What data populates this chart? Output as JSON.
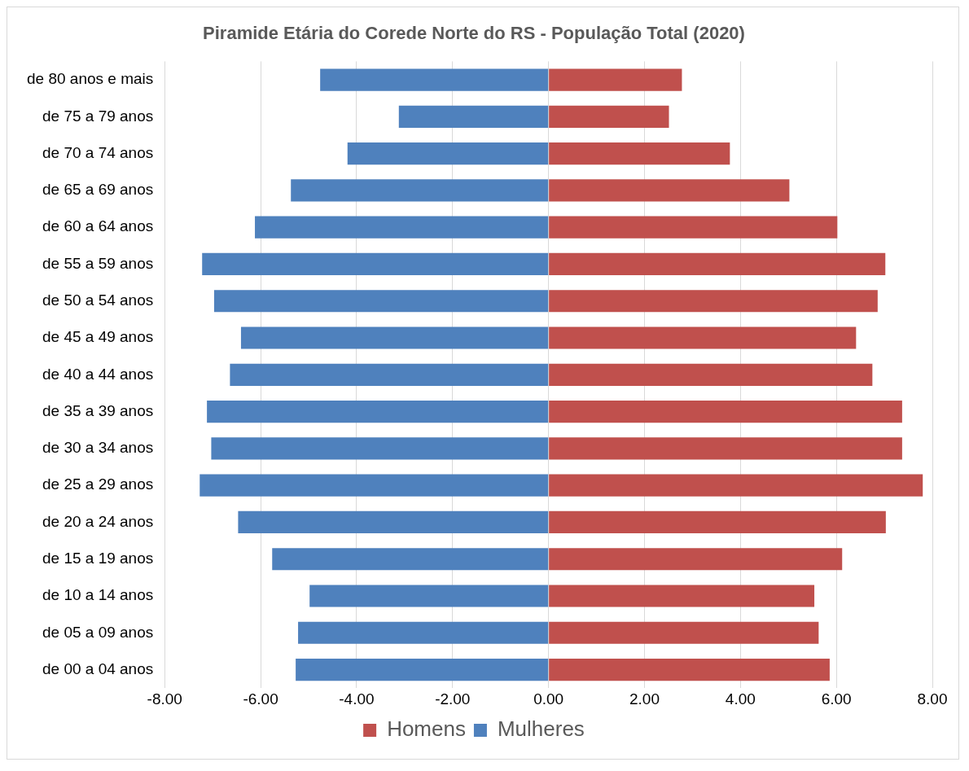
{
  "chart_data": {
    "type": "bar",
    "orientation": "horizontal",
    "stacked": true,
    "title": "Piramide Etária do Corede Norte do RS - População Total (2020)",
    "categories": [
      "de 80 anos e mais",
      "de 75 a 79 anos",
      "de 70 a 74 anos",
      "de 65 a 69 anos",
      "de 60 a 64 anos",
      "de 55 a 59 anos",
      "de 50 a 54 anos",
      "de 45 a 49 anos",
      "de 40 a 44 anos",
      "de 35 a 39 anos",
      "de 30 a 34 anos",
      "de 25 a 29 anos",
      "de 20 a 24 anos",
      "de 15 a 19 anos",
      "de 10 a 14 anos",
      "de 05 a 09 anos",
      "de 00 a 04 anos"
    ],
    "series": [
      {
        "name": "Homens",
        "color": "#c0504d",
        "values": [
          2.78,
          2.51,
          3.78,
          5.02,
          6.02,
          7.02,
          6.86,
          6.41,
          6.75,
          7.37,
          7.37,
          7.8,
          7.03,
          6.12,
          5.54,
          5.63,
          5.86
        ]
      },
      {
        "name": "Mulheres",
        "color": "#4f81bd",
        "values": [
          -4.76,
          -3.12,
          -4.19,
          -5.37,
          -6.12,
          -7.22,
          -6.97,
          -6.41,
          -6.64,
          -7.12,
          -7.03,
          -7.27,
          -6.47,
          -5.76,
          -4.98,
          -5.22,
          -5.27
        ]
      }
    ],
    "xlim": [
      -8,
      8
    ],
    "xticks": [
      {
        "value": -8,
        "label": "-8.00"
      },
      {
        "value": -6,
        "label": "-6.00"
      },
      {
        "value": -4,
        "label": "-4.00"
      },
      {
        "value": -2,
        "label": "-2.00"
      },
      {
        "value": 0,
        "label": "0.00"
      },
      {
        "value": 2,
        "label": "2.00"
      },
      {
        "value": 4,
        "label": "4.00"
      },
      {
        "value": 6,
        "label": "6.00"
      },
      {
        "value": 8,
        "label": "8.00"
      }
    ],
    "grid": "x",
    "legend": "bottom"
  }
}
